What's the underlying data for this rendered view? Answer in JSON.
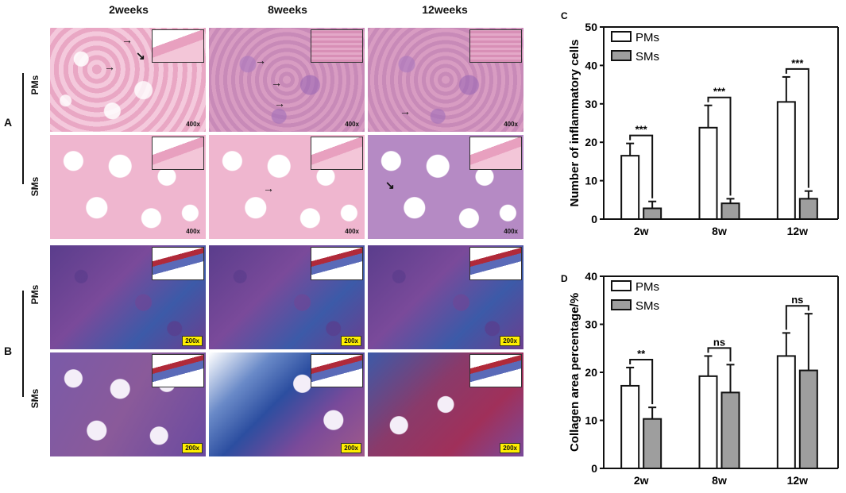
{
  "figure": {
    "column_headers": [
      "2weeks",
      "8weeks",
      "12weeks"
    ],
    "panel_letters": {
      "a": "A",
      "b": "B",
      "c": "C",
      "d": "D"
    },
    "row_labels": {
      "pms": "PMs",
      "sms": "SMs"
    },
    "magnifications": {
      "he": "400x",
      "masson": "200x"
    },
    "colors": {
      "he_stain": "#eeb3cc",
      "masson_stain": "#6a4a95",
      "label_box": "#ffee00"
    }
  },
  "chart_data": [
    {
      "type": "bar",
      "panel": "C",
      "categories": [
        "2w",
        "8w",
        "12w"
      ],
      "ylabel": "Number of inflammatory cells",
      "xlabel": "",
      "ylim": [
        0,
        50
      ],
      "yticks": [
        0,
        10,
        20,
        30,
        40,
        50
      ],
      "legend_placement": "top-left",
      "series": [
        {
          "name": "PMs",
          "color": "#ffffff",
          "values": [
            16.5,
            23.8,
            30.5
          ],
          "error": [
            3.2,
            5.8,
            6.5
          ]
        },
        {
          "name": "SMs",
          "color": "#9e9e9e",
          "values": [
            2.8,
            4.1,
            5.3
          ],
          "error": [
            1.8,
            1.2,
            2.0
          ]
        }
      ],
      "significance": [
        "***",
        "***",
        "***"
      ]
    },
    {
      "type": "bar",
      "panel": "D",
      "categories": [
        "2w",
        "8w",
        "12w"
      ],
      "ylabel": "Collagen area percentage/%",
      "xlabel": "",
      "ylim": [
        0,
        40
      ],
      "yticks": [
        0,
        10,
        20,
        30,
        40
      ],
      "legend_placement": "top-left",
      "series": [
        {
          "name": "PMs",
          "color": "#ffffff",
          "values": [
            17.2,
            19.2,
            23.4
          ],
          "error": [
            3.8,
            4.2,
            4.8
          ]
        },
        {
          "name": "SMs",
          "color": "#9e9e9e",
          "values": [
            10.3,
            15.8,
            20.4
          ],
          "error": [
            2.4,
            5.8,
            11.8
          ]
        }
      ],
      "significance": [
        "**",
        "ns",
        "ns"
      ]
    }
  ]
}
